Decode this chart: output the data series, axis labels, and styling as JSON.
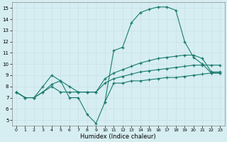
{
  "xlabel": "Humidex (Indice chaleur)",
  "bg_color": "#d6eef2",
  "line_color": "#1a7a6e",
  "grid_color": "#c8e0e6",
  "xlim": [
    -0.5,
    23.5
  ],
  "ylim": [
    4.5,
    15.5
  ],
  "xticks": [
    0,
    1,
    2,
    3,
    4,
    5,
    6,
    7,
    8,
    9,
    10,
    11,
    12,
    13,
    14,
    15,
    16,
    17,
    18,
    19,
    20,
    21,
    22,
    23
  ],
  "yticks": [
    5,
    6,
    7,
    8,
    9,
    10,
    11,
    12,
    13,
    14,
    15
  ],
  "line1_x": [
    0,
    1,
    2,
    3,
    4,
    5,
    6,
    7,
    8,
    9,
    10,
    11,
    12,
    13,
    14,
    15,
    16,
    17,
    18,
    19,
    20,
    21,
    22,
    23
  ],
  "line1_y": [
    7.5,
    7.0,
    7.0,
    8.0,
    9.0,
    8.5,
    7.0,
    7.0,
    5.5,
    4.7,
    6.6,
    8.3,
    8.3,
    8.5,
    8.5,
    8.6,
    8.7,
    8.8,
    8.8,
    8.9,
    9.0,
    9.1,
    9.2,
    9.2
  ],
  "line2_x": [
    0,
    1,
    2,
    3,
    4,
    5,
    6,
    7,
    8,
    9,
    10,
    11,
    12,
    13,
    14,
    15,
    16,
    17,
    18,
    19,
    20,
    21,
    22,
    23
  ],
  "line2_y": [
    7.5,
    7.0,
    7.0,
    7.5,
    8.2,
    8.5,
    8.0,
    7.5,
    7.5,
    7.5,
    8.3,
    8.7,
    8.9,
    9.1,
    9.3,
    9.4,
    9.5,
    9.6,
    9.7,
    9.8,
    9.9,
    9.9,
    9.9,
    9.9
  ],
  "line3_x": [
    0,
    1,
    2,
    3,
    4,
    5,
    6,
    7,
    8,
    9,
    10,
    11,
    12,
    13,
    14,
    15,
    16,
    17,
    18,
    19,
    20,
    21,
    22,
    23
  ],
  "line3_y": [
    7.5,
    7.0,
    7.0,
    7.5,
    8.0,
    7.5,
    7.5,
    7.5,
    7.5,
    7.5,
    8.7,
    9.2,
    9.5,
    9.8,
    10.1,
    10.3,
    10.5,
    10.6,
    10.7,
    10.8,
    10.8,
    10.5,
    9.3,
    9.3
  ],
  "line4_x": [
    10,
    11,
    12,
    13,
    14,
    15,
    16,
    17,
    18,
    19,
    20,
    21,
    22,
    23
  ],
  "line4_y": [
    6.6,
    11.2,
    11.5,
    13.7,
    14.6,
    14.9,
    15.1,
    15.1,
    14.8,
    12.0,
    10.6,
    10.0,
    9.2,
    9.2
  ]
}
